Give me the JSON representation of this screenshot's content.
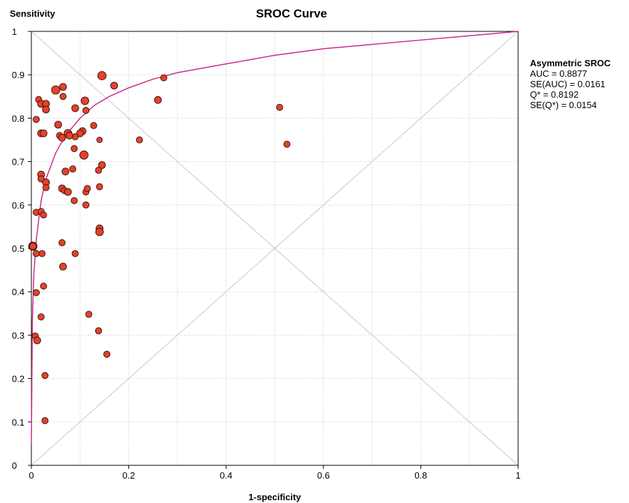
{
  "chart_data": {
    "type": "scatter",
    "title": "SROC Curve",
    "xlabel": "1-specificity",
    "ylabel": "Sensitivity",
    "xlim": [
      0,
      1
    ],
    "ylim": [
      0,
      1
    ],
    "x_ticks": [
      "0",
      "0.2",
      "0.4",
      "0.6",
      "0.8",
      "1"
    ],
    "y_ticks": [
      "0",
      "0.1",
      "0.2",
      "0.3",
      "0.4",
      "0.5",
      "0.6",
      "0.7",
      "0.8",
      "0.9",
      "1"
    ],
    "grid": true,
    "legend_position": "right",
    "legend": {
      "title": "Asymmetric SROC",
      "lines": [
        "AUC = 0.8877",
        "SE(AUC) = 0.0161",
        "Q* = 0.8192",
        "SE(Q*) = 0.0154"
      ]
    },
    "colors": {
      "points": "#e8402a",
      "curve": "#cc2a8a",
      "grid": "#c8c8c8",
      "diagonal": "#c8c8d0"
    },
    "curve": {
      "name": "Asymmetric SROC",
      "x": [
        0,
        0.002,
        0.005,
        0.01,
        0.02,
        0.03,
        0.05,
        0.07,
        0.1,
        0.13,
        0.16,
        0.2,
        0.25,
        0.3,
        0.4,
        0.5,
        0.6,
        0.7,
        0.8,
        0.9,
        1.0
      ],
      "y": [
        0.05,
        0.33,
        0.44,
        0.52,
        0.61,
        0.66,
        0.72,
        0.76,
        0.8,
        0.83,
        0.85,
        0.87,
        0.89,
        0.905,
        0.925,
        0.945,
        0.96,
        0.97,
        0.98,
        0.99,
        1.0
      ]
    },
    "series": [
      {
        "x": [
          0.05,
          0.145,
          0.11,
          0.065,
          0.003,
          0.003,
          0.015,
          0.02,
          0.03,
          0.03,
          0.065,
          0.09,
          0.112,
          0.02,
          0.01,
          0.025,
          0.055,
          0.075,
          0.105,
          0.128,
          0.1,
          0.09,
          0.078,
          0.058,
          0.063,
          0.14,
          0.088,
          0.108,
          0.02,
          0.02,
          0.03,
          0.03,
          0.063,
          0.068,
          0.075,
          0.112,
          0.14,
          0.145,
          0.138,
          0.085,
          0.07,
          0.088,
          0.115,
          0.112,
          0.14,
          0.14,
          0.01,
          0.02,
          0.025,
          0.022,
          0.01,
          0.063,
          0.09,
          0.065,
          0.025,
          0.01,
          0.02,
          0.008,
          0.012,
          0.118,
          0.138,
          0.155,
          0.028,
          0.028,
          0.17,
          0.272,
          0.26,
          0.222,
          0.51,
          0.525
        ],
        "y": [
          0.865,
          0.898,
          0.84,
          0.872,
          0.505,
          0.505,
          0.843,
          0.833,
          0.833,
          0.82,
          0.85,
          0.823,
          0.818,
          0.765,
          0.797,
          0.765,
          0.785,
          0.765,
          0.77,
          0.783,
          0.765,
          0.757,
          0.76,
          0.76,
          0.755,
          0.75,
          0.73,
          0.715,
          0.67,
          0.66,
          0.652,
          0.64,
          0.638,
          0.633,
          0.63,
          0.63,
          0.642,
          0.692,
          0.68,
          0.683,
          0.677,
          0.61,
          0.638,
          0.6,
          0.546,
          0.538,
          0.583,
          0.585,
          0.577,
          0.488,
          0.488,
          0.513,
          0.488,
          0.458,
          0.413,
          0.398,
          0.342,
          0.298,
          0.288,
          0.348,
          0.31,
          0.256,
          0.207,
          0.103,
          0.875,
          0.893,
          0.842,
          0.75,
          0.825,
          0.74
        ],
        "r": [
          6,
          6,
          5.5,
          5,
          6,
          5,
          4.5,
          5,
          5,
          5,
          4.5,
          5,
          4.5,
          5,
          4.5,
          5,
          5,
          5.5,
          5,
          4.5,
          5,
          4.5,
          5,
          4.5,
          5,
          4,
          4.5,
          6,
          5,
          4.5,
          5,
          4.5,
          5,
          4.5,
          5,
          4.5,
          4.5,
          5,
          4.5,
          4.5,
          5,
          4.5,
          4.5,
          4.5,
          5,
          5.5,
          4.5,
          4.5,
          4.5,
          4.5,
          4.5,
          4.5,
          4.5,
          5,
          4.5,
          4.5,
          4.5,
          4.5,
          5,
          4.5,
          4.5,
          4.5,
          4.5,
          4.5,
          5,
          4.5,
          5,
          4.5,
          4.5,
          4.5
        ]
      }
    ]
  }
}
